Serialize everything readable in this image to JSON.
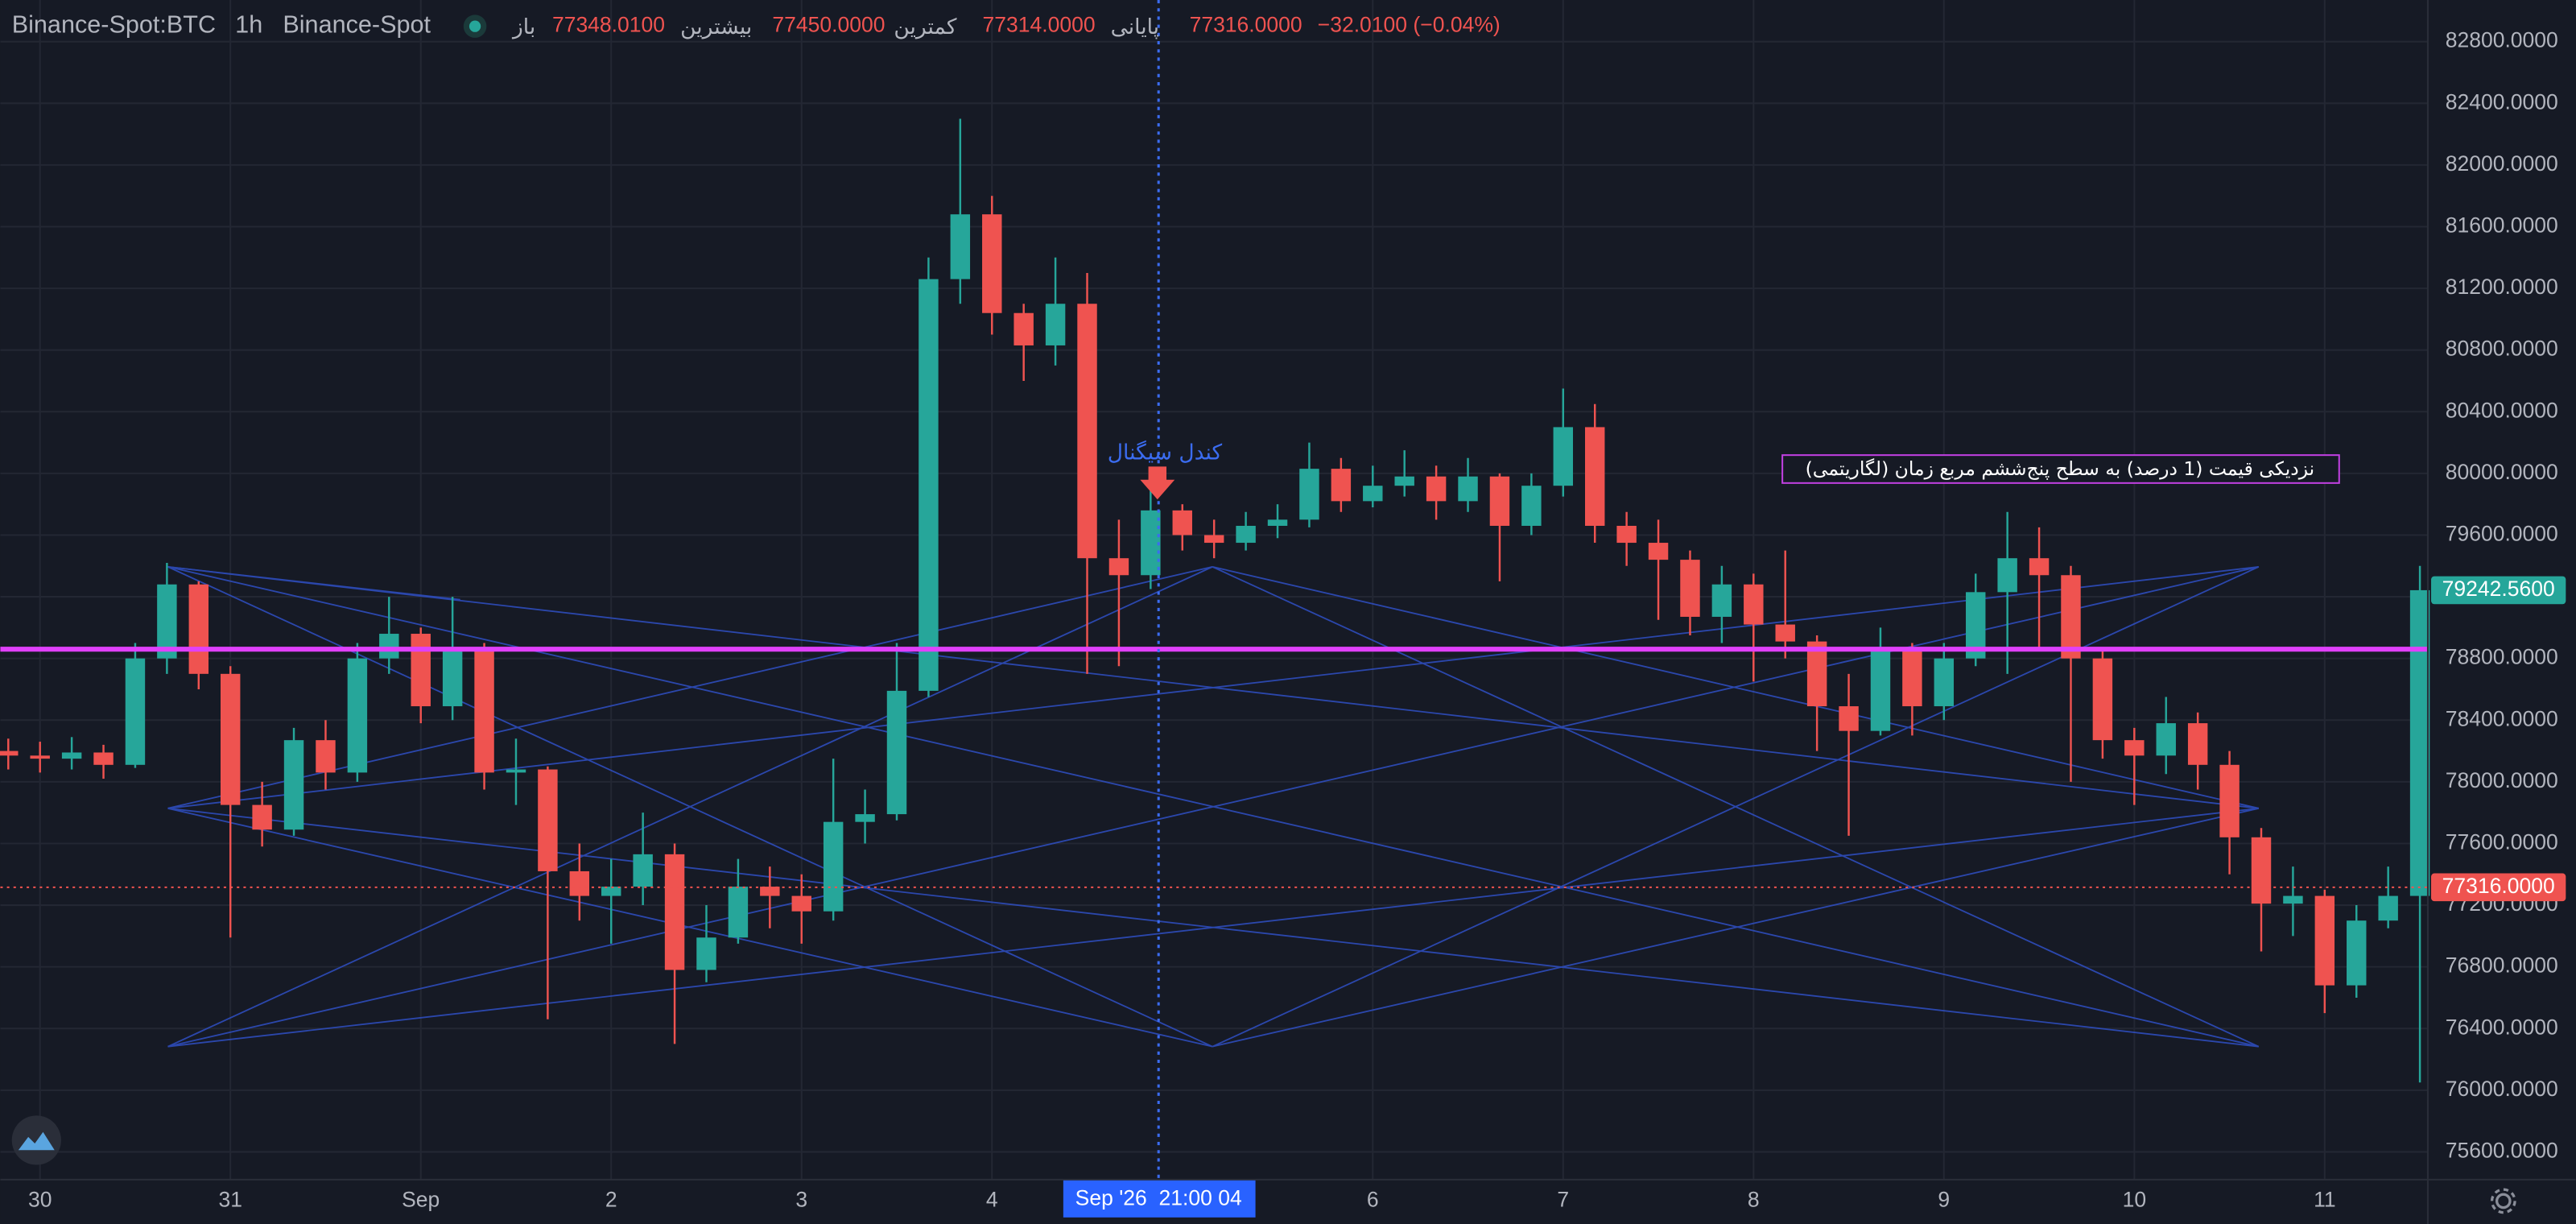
{
  "header": {
    "symbol": "Binance-Spot:BTC",
    "interval": "1h",
    "exchange": "Binance-Spot",
    "open_label": "باز",
    "open": "77348.0100",
    "high_label": "بیشترین",
    "high": "77450.0000",
    "low_label": "کمترین",
    "low": "77314.0000",
    "close_label": "پایانی",
    "close": "77316.0000",
    "change": "−32.0100 (−0.04%)"
  },
  "chart_data": {
    "type": "candlestick",
    "x": [
      -4,
      0,
      4,
      8,
      12,
      16,
      20,
      24,
      28,
      32,
      36,
      40,
      44,
      48,
      52,
      56,
      60,
      64,
      68,
      72,
      76,
      80,
      84,
      88,
      92,
      96,
      100,
      104,
      108,
      112,
      116,
      120,
      124,
      128,
      132,
      136,
      140,
      144,
      148,
      152,
      156,
      160,
      164,
      168,
      172,
      176,
      180,
      184,
      188,
      192,
      196,
      200,
      204,
      208,
      212,
      216,
      220,
      224,
      228,
      232,
      236,
      240,
      244,
      248,
      252,
      256,
      260,
      264,
      268,
      272,
      276,
      280,
      284,
      288,
      292,
      296,
      300
    ],
    "open": [
      78200,
      78170,
      78150,
      78190,
      78110,
      78800,
      79280,
      78700,
      77850,
      77690,
      78270,
      78060,
      78800,
      78960,
      78490,
      78860,
      78060,
      78080,
      77420,
      77260,
      77320,
      77530,
      76780,
      76990,
      77320,
      77260,
      77160,
      77740,
      77790,
      78590,
      81260,
      81680,
      81040,
      80830,
      81100,
      79450,
      79340,
      79760,
      79600,
      79550,
      79660,
      79700,
      80030,
      79820,
      79920,
      79980,
      79820,
      79980,
      79660,
      79920,
      80300,
      79660,
      79550,
      79440,
      79070,
      79280,
      79020,
      78910,
      78490,
      78330,
      78860,
      78490,
      78800,
      79230,
      79450,
      79340,
      78800,
      78270,
      78170,
      78380,
      78110,
      77640,
      77210,
      77260,
      76680,
      77100,
      77260
    ],
    "high": [
      78280,
      78260,
      78290,
      78240,
      78900,
      79420,
      79300,
      78750,
      78000,
      78350,
      78400,
      78900,
      79200,
      79000,
      79200,
      78900,
      78280,
      78100,
      77600,
      77500,
      77800,
      77600,
      77200,
      77500,
      77450,
      77400,
      78150,
      77950,
      78900,
      81400,
      82300,
      81800,
      81100,
      81400,
      81300,
      79700,
      79900,
      79800,
      79700,
      79750,
      79800,
      80200,
      80100,
      80050,
      80150,
      80050,
      80100,
      80000,
      80000,
      80550,
      80450,
      79750,
      79700,
      79500,
      79400,
      79350,
      79500,
      78950,
      78700,
      79000,
      78900,
      78900,
      79350,
      79750,
      79650,
      79400,
      78850,
      78350,
      78550,
      78450,
      78200,
      77700,
      77450,
      77300,
      77200,
      77450,
      79400
    ],
    "low": [
      78080,
      78060,
      78080,
      78020,
      78090,
      78700,
      78600,
      76990,
      77580,
      77650,
      77950,
      78000,
      78700,
      78380,
      78400,
      77950,
      77850,
      76460,
      77100,
      76950,
      77200,
      76300,
      76700,
      76950,
      77050,
      76950,
      77100,
      77600,
      77750,
      78550,
      81100,
      80900,
      80600,
      80700,
      78700,
      78750,
      79250,
      79500,
      79450,
      79500,
      79580,
      79650,
      79750,
      79780,
      79850,
      79700,
      79750,
      79300,
      79600,
      79850,
      79550,
      79400,
      79050,
      78950,
      78900,
      78650,
      78800,
      78200,
      77650,
      78300,
      78300,
      78400,
      78750,
      78700,
      78850,
      78000,
      78150,
      77850,
      78050,
      77950,
      77400,
      76900,
      77000,
      76500,
      76600,
      77050,
      76050
    ],
    "close": [
      78170,
      78150,
      78190,
      78110,
      78800,
      79280,
      78700,
      77850,
      77690,
      78270,
      78060,
      78800,
      78960,
      78490,
      78860,
      78060,
      78080,
      77420,
      77260,
      77320,
      77530,
      76780,
      76990,
      77320,
      77260,
      77160,
      77740,
      77790,
      78590,
      81260,
      81680,
      81040,
      80830,
      81100,
      79450,
      79340,
      79760,
      79600,
      79550,
      79660,
      79700,
      80030,
      79820,
      79920,
      79980,
      79820,
      79980,
      79660,
      79920,
      80300,
      79660,
      79550,
      79440,
      79070,
      79280,
      79020,
      78910,
      78490,
      78330,
      78860,
      78490,
      78800,
      79230,
      79450,
      79340,
      78800,
      78270,
      78170,
      78380,
      78110,
      77640,
      77210,
      77260,
      76680,
      77100,
      77260,
      79242.56
    ],
    "up_color": "#26a69a",
    "down_color": "#ef5350",
    "xlim": [
      -5,
      301
    ],
    "ylim": [
      75420,
      83070
    ],
    "xticks": [
      {
        "value": 0,
        "label": "30"
      },
      {
        "value": 24,
        "label": "31"
      },
      {
        "value": 48,
        "label": "Sep"
      },
      {
        "value": 72,
        "label": "2"
      },
      {
        "value": 96,
        "label": "3"
      },
      {
        "value": 120,
        "label": "4"
      },
      {
        "value": 168,
        "label": "6"
      },
      {
        "value": 192,
        "label": "7"
      },
      {
        "value": 216,
        "label": "8"
      },
      {
        "value": 240,
        "label": "9"
      },
      {
        "value": 264,
        "label": "10"
      },
      {
        "value": 288,
        "label": "11"
      }
    ],
    "yticks": [
      {
        "value": 75600,
        "label": "75600.0000"
      },
      {
        "value": 76000,
        "label": "76000.0000"
      },
      {
        "value": 76400,
        "label": "76400.0000"
      },
      {
        "value": 76800,
        "label": "76800.0000"
      },
      {
        "value": 77200,
        "label": "77200.0000"
      },
      {
        "value": 77600,
        "label": "77600.0000"
      },
      {
        "value": 78000,
        "label": "78000.0000"
      },
      {
        "value": 78400,
        "label": "78400.0000"
      },
      {
        "value": 78800,
        "label": "78800.0000"
      },
      {
        "value": 79200,
        "label": "79200.0000"
      },
      {
        "value": 79600,
        "label": "79600.0000"
      },
      {
        "value": 80000,
        "label": "80000.0000"
      },
      {
        "value": 80400,
        "label": "80400.0000"
      },
      {
        "value": 80800,
        "label": "80800.0000"
      },
      {
        "value": 81200,
        "label": "81200.0000"
      },
      {
        "value": 81600,
        "label": "81600.0000"
      },
      {
        "value": 82000,
        "label": "82000.0000"
      },
      {
        "value": 82400,
        "label": "82400.0000"
      },
      {
        "value": 82800,
        "label": "82800.0000"
      }
    ],
    "grid": true,
    "horizontal_line": {
      "value": 78860,
      "color": "#e040fb"
    },
    "price_tags": [
      {
        "value": 79242.56,
        "label": "79242.5600",
        "color": "#26a69a"
      },
      {
        "value": 77316,
        "label": "77316.0000",
        "color": "#ef5350",
        "dotted_line": true
      }
    ],
    "crosshair": {
      "x": 141,
      "label": "Sep '26  21:00 04"
    },
    "annotations": [
      "کندل سیگنال",
      "نزدیکی قیمت (1 درصد) به سطح پنج‌ششم مربع زمان (لگاریتمی)"
    ]
  }
}
